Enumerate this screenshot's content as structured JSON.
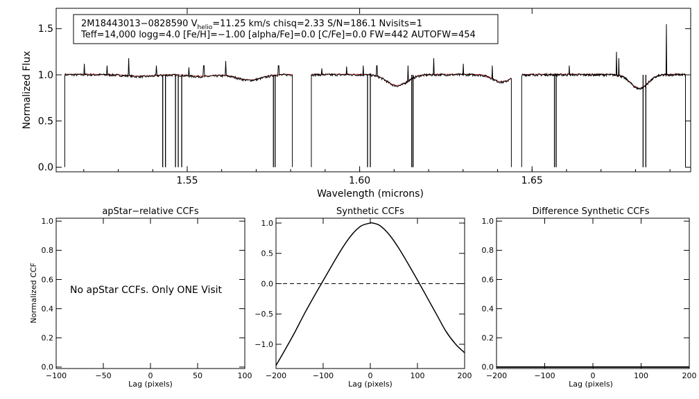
{
  "chart_data": [
    {
      "type": "line",
      "id": "spectrum",
      "xlabel": "Wavelength (microns)",
      "ylabel": "Normalized Flux",
      "xlim": [
        1.512,
        1.696
      ],
      "ylim": [
        -0.05,
        1.72
      ],
      "xticks": [
        1.55,
        1.6,
        1.65
      ],
      "xtick_labels": [
        "1.55",
        "1.60",
        "1.65"
      ],
      "yticks": [
        0.0,
        0.5,
        1.0,
        1.5
      ],
      "ytick_labels": [
        "0.0",
        "0.5",
        "1.0",
        "1.5"
      ],
      "info_line1": {
        "star": "2M18443013−0828590",
        "v_label": "V",
        "v_sub": "helio",
        "v_rest": "=11.25 km/s  chisq=2.33  S/N=186.1  Nvisits=1"
      },
      "info_line2": "Teff=14,000 logg=4.0 [Fe/H]=−1.00 [alpha/Fe]=0.0 [C/Fe]=0.0 FW=442 AUTOFW=454",
      "chips": [
        [
          1.5145,
          1.5805
        ],
        [
          1.586,
          1.644
        ],
        [
          1.647,
          1.6945
        ]
      ],
      "continuum_dips": [
        {
          "center": 1.5365,
          "depth": 0.02,
          "width": 0.004
        },
        {
          "center": 1.554,
          "depth": 0.02,
          "width": 0.004
        },
        {
          "center": 1.5681,
          "depth": 0.06,
          "width": 0.0035
        },
        {
          "center": 1.6109,
          "depth": 0.12,
          "width": 0.003
        },
        {
          "center": 1.6412,
          "depth": 0.08,
          "width": 0.0025
        },
        {
          "center": 1.6811,
          "depth": 0.15,
          "width": 0.0025
        }
      ],
      "emission_lines": [
        [
          1.5201,
          1.12
        ],
        [
          1.5268,
          1.1
        ],
        [
          1.533,
          1.18
        ],
        [
          1.541,
          1.1
        ],
        [
          1.5505,
          1.08
        ],
        [
          1.5548,
          1.1
        ],
        [
          1.5612,
          1.15
        ],
        [
          1.5765,
          1.1
        ],
        [
          1.589,
          1.07
        ],
        [
          1.5962,
          1.09
        ],
        [
          1.601,
          1.1
        ],
        [
          1.605,
          1.1
        ],
        [
          1.614,
          1.1
        ],
        [
          1.6215,
          1.18
        ],
        [
          1.63,
          1.12
        ],
        [
          1.6385,
          1.1
        ],
        [
          1.6608,
          1.1
        ],
        [
          1.6745,
          1.25
        ],
        [
          1.6752,
          1.18
        ],
        [
          1.689,
          1.55
        ]
      ],
      "bad_pixel_columns": [
        1.5429,
        1.5437,
        1.5466,
        1.5474,
        1.5484,
        1.575,
        1.5755,
        1.6023,
        1.6031,
        1.6151,
        1.6155,
        1.6565,
        1.657,
        1.6822,
        1.683
      ]
    },
    {
      "type": "text",
      "id": "apstar-ccf",
      "title": "apStar−relative CCFs",
      "xlabel": "Lag (pixels)",
      "ylabel": "Normalized CCF",
      "xlim": [
        -100,
        100
      ],
      "ylim": [
        -0.01,
        1.02
      ],
      "xticks": [
        -100,
        -50,
        0,
        50,
        100
      ],
      "xtick_labels": [
        "−100",
        "−50",
        "0",
        "50",
        "100"
      ],
      "yticks": [
        0.0,
        0.2,
        0.4,
        0.6,
        0.8,
        1.0
      ],
      "ytick_labels": [
        "0.0",
        "0.2",
        "0.4",
        "0.6",
        "0.8",
        "1.0"
      ],
      "message": "No apStar CCFs.  Only ONE Visit"
    },
    {
      "type": "line",
      "id": "synthetic-ccf",
      "title": "Synthetic CCFs",
      "xlabel": "Lag (pixels)",
      "xlim": [
        -200,
        200
      ],
      "ylim": [
        -1.4,
        1.08
      ],
      "xticks": [
        -200,
        -100,
        0,
        100,
        200
      ],
      "xtick_labels": [
        "−200",
        "−100",
        "0",
        "100",
        "200"
      ],
      "yticks": [
        -1.0,
        -0.5,
        0.0,
        0.5,
        1.0
      ],
      "ytick_labels": [
        "−1.0",
        "−0.5",
        "0.0",
        "0.5",
        "1.0"
      ],
      "x": [
        -200,
        -180,
        -160,
        -140,
        -120,
        -100,
        -80,
        -60,
        -40,
        -20,
        0,
        5,
        20,
        40,
        60,
        80,
        100,
        120,
        140,
        160,
        180,
        200
      ],
      "y": [
        -1.35,
        -1.08,
        -0.8,
        -0.5,
        -0.22,
        0.05,
        0.32,
        0.58,
        0.8,
        0.95,
        1.0,
        1.0,
        0.96,
        0.81,
        0.59,
        0.33,
        0.06,
        -0.22,
        -0.5,
        -0.78,
        -0.99,
        -1.14
      ],
      "zero_line": 0.0
    },
    {
      "type": "line",
      "id": "difference-ccf",
      "title": "Difference Synthetic CCFs",
      "xlabel": "Lag (pixels)",
      "xlim": [
        -200,
        200
      ],
      "ylim": [
        -0.01,
        1.02
      ],
      "xticks": [
        -200,
        -100,
        0,
        100,
        200
      ],
      "xtick_labels": [
        "−200",
        "−100",
        "0",
        "100",
        "200"
      ],
      "yticks": [
        0.0,
        0.2,
        0.4,
        0.6,
        0.8,
        1.0
      ],
      "ytick_labels": [
        "0.0",
        "0.2",
        "0.4",
        "0.6",
        "0.8",
        "1.0"
      ],
      "x": [
        -200,
        200
      ],
      "y": [
        0.0,
        0.0
      ]
    }
  ]
}
